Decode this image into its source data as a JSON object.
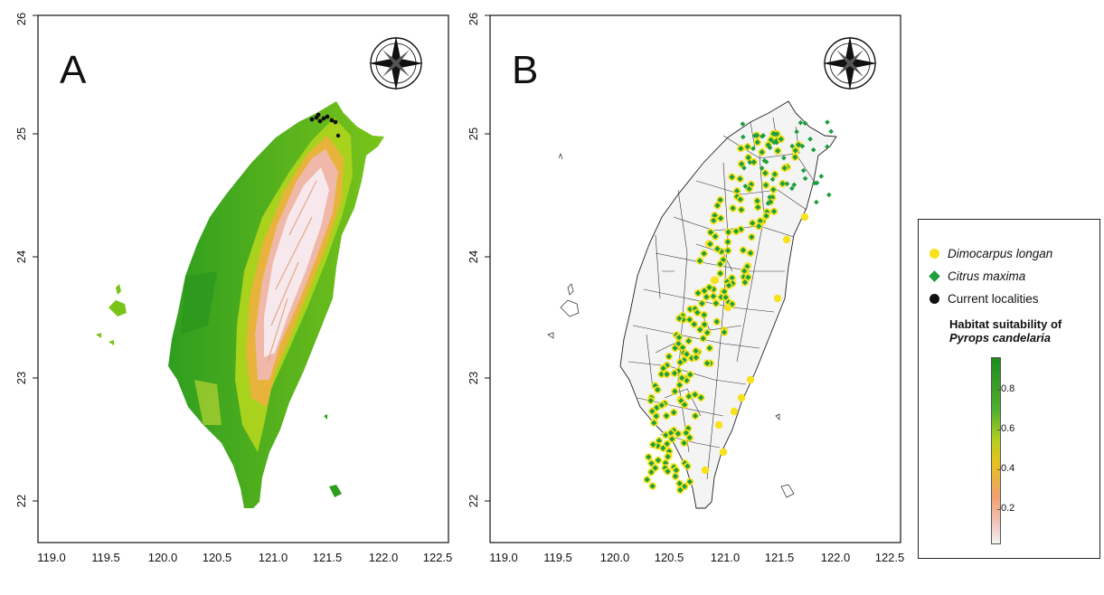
{
  "panels": [
    {
      "label": "A",
      "x_ticks": [
        "119.0",
        "119.5",
        "120.0",
        "120.5",
        "121.0",
        "121.5",
        "122.0",
        "122.5"
      ],
      "y_ticks": [
        "26",
        "25",
        "24",
        "23",
        "22"
      ]
    },
    {
      "label": "B",
      "x_ticks": [
        "119.0",
        "119.5",
        "120.0",
        "120.5",
        "121.0",
        "121.5",
        "122.0",
        "122.5"
      ],
      "y_ticks": [
        "26",
        "25",
        "24",
        "23",
        "22"
      ]
    }
  ],
  "legend": {
    "items": [
      {
        "label": "Dimocarpus longan",
        "symbol": "circle",
        "color": "#f7e21c"
      },
      {
        "label": "Citrus maxima",
        "symbol": "diamond",
        "color": "#1e9e3c"
      },
      {
        "label": "Current localities",
        "symbol": "circle",
        "color": "#111111"
      }
    ],
    "title_line1": "Habitat suitability of",
    "title_line2": "Pyrops candelaria",
    "scale_ticks": [
      "0.8",
      "0.6",
      "0.4",
      "0.2"
    ]
  },
  "colors": {
    "lowland": "#2e9e1e",
    "midland": "#9ed21a",
    "highland": "#f2b9a0",
    "peak": "#f7eef0",
    "longan": "#f7e21c",
    "pomelo": "#1e9e3c"
  }
}
